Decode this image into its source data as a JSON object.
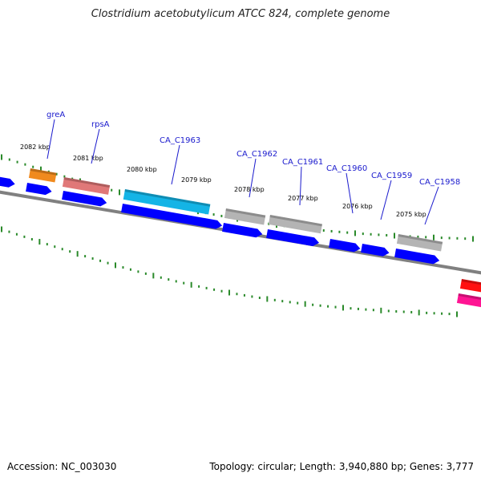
{
  "title": "Clostridium acetobutylicum ATCC 824, complete genome",
  "accession_text": "Accession: NC_003030",
  "summary_text": "Topology: circular; Length: 3,940,880 bp; Genes: 3,777",
  "colors": {
    "backbone": "#808080",
    "tick": "#2a8a2a",
    "cds": "#0000ff",
    "gene_label": "#1a1acd",
    "orange_feature": "#f08a1e",
    "salmon_feature": "#e07878",
    "cyan_feature": "#14b4e6",
    "gray_feature": "#b4b4b4",
    "red_feature": "#ff1010",
    "pink_feature": "#ff1493"
  },
  "kbp_labels": [
    "2082 kbp",
    "2081 kbp",
    "2080 kbp",
    "2079 kbp",
    "2078 kbp",
    "2077 kbp",
    "2076 kbp",
    "2075 kbp"
  ],
  "gene_labels": [
    "greA",
    "rpsA",
    "CA_C1963",
    "CA_C1962",
    "CA_C1961",
    "CA_C1960",
    "CA_C1959",
    "CA_C1958"
  ]
}
